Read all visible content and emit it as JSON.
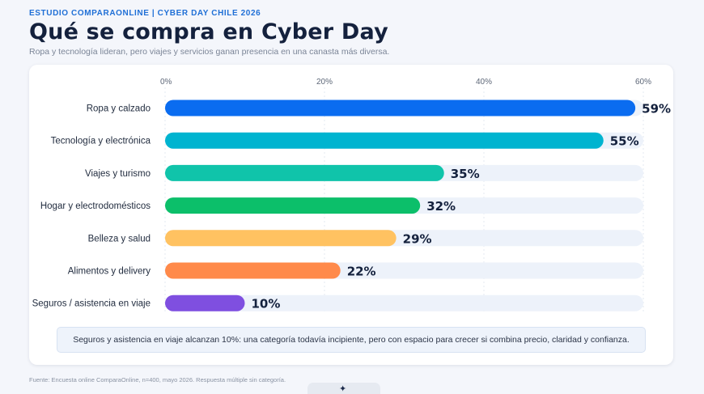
{
  "header": {
    "eyebrow": "ESTUDIO COMPARAONLINE | CYBER DAY CHILE 2026",
    "title": "Qué se compra en Cyber Day",
    "subtitle": "Ropa y tecnología lideran, pero viajes y servicios ganan presencia en una canasta más diversa."
  },
  "note": "Seguros y asistencia en viaje alcanzan 10%: una categoría todavía incipiente, pero con espacio para crecer si combina precio, claridad y confianza.",
  "source": "Fuente: Encuesta online ComparaOnline, n=400, mayo 2026. Respuesta múltiple sin categoría.",
  "logo_icon": "star-icon",
  "chart_data": {
    "type": "bar",
    "orientation": "horizontal",
    "title": "Qué se compra en Cyber Day",
    "categories": [
      "Ropa y calzado",
      "Tecnología y electrónica",
      "Viajes y turismo",
      "Hogar y electrodomésticos",
      "Belleza y salud",
      "Alimentos y delivery",
      "Seguros / asistencia en viaje"
    ],
    "values": [
      59,
      55,
      35,
      32,
      29,
      22,
      10
    ],
    "value_labels": [
      "59%",
      "55%",
      "35%",
      "32%",
      "29%",
      "22%",
      "10%"
    ],
    "colors": [
      "#0a6cf0",
      "#00b4d0",
      "#10c4aa",
      "#0cbf6a",
      "#ffc261",
      "#ff8a4a",
      "#7f4fe0"
    ],
    "track_color": "#edf2fa",
    "xlim": [
      0,
      60
    ],
    "xticks": [
      0,
      20,
      40,
      60
    ],
    "xtick_labels": [
      "0%",
      "20%",
      "40%",
      "60%"
    ],
    "grid": true,
    "legend": "none"
  }
}
